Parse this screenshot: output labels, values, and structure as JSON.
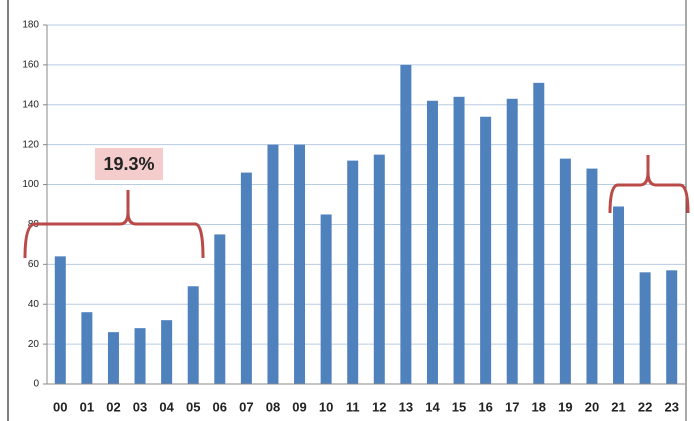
{
  "chart_data": {
    "type": "bar",
    "categories": [
      "00",
      "01",
      "02",
      "03",
      "04",
      "05",
      "06",
      "07",
      "08",
      "09",
      "10",
      "11",
      "12",
      "13",
      "14",
      "15",
      "16",
      "17",
      "18",
      "19",
      "20",
      "21",
      "22",
      "23"
    ],
    "values": [
      64,
      36,
      26,
      28,
      32,
      49,
      75,
      106,
      120,
      120,
      85,
      112,
      115,
      160,
      142,
      144,
      134,
      143,
      151,
      113,
      108,
      89,
      56,
      57
    ],
    "color": "#4f81bd",
    "ylim": [
      0,
      180
    ],
    "yticks": [
      0,
      20,
      40,
      60,
      80,
      100,
      120,
      140,
      160,
      180
    ],
    "grid": true,
    "annotations": [
      "19.3%"
    ]
  }
}
